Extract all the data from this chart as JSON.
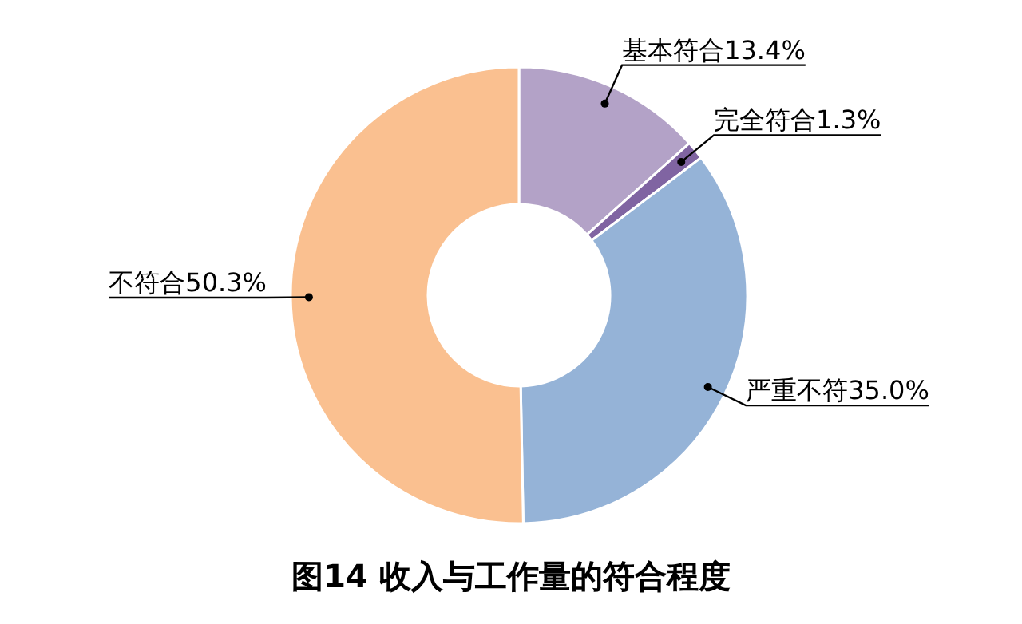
{
  "chart_data": {
    "type": "donut",
    "title": "图14 收入与工作量的符合程度",
    "categories": [
      "基本符合",
      "完全符合",
      "严重不符",
      "不符合"
    ],
    "values": [
      13.4,
      1.3,
      35.0,
      50.3
    ],
    "value_labels": [
      "13.4%",
      "1.3%",
      "35.0%",
      "50.3%"
    ],
    "colors": [
      "#b3a2c7",
      "#8064a2",
      "#95b3d7",
      "#fac090"
    ]
  }
}
